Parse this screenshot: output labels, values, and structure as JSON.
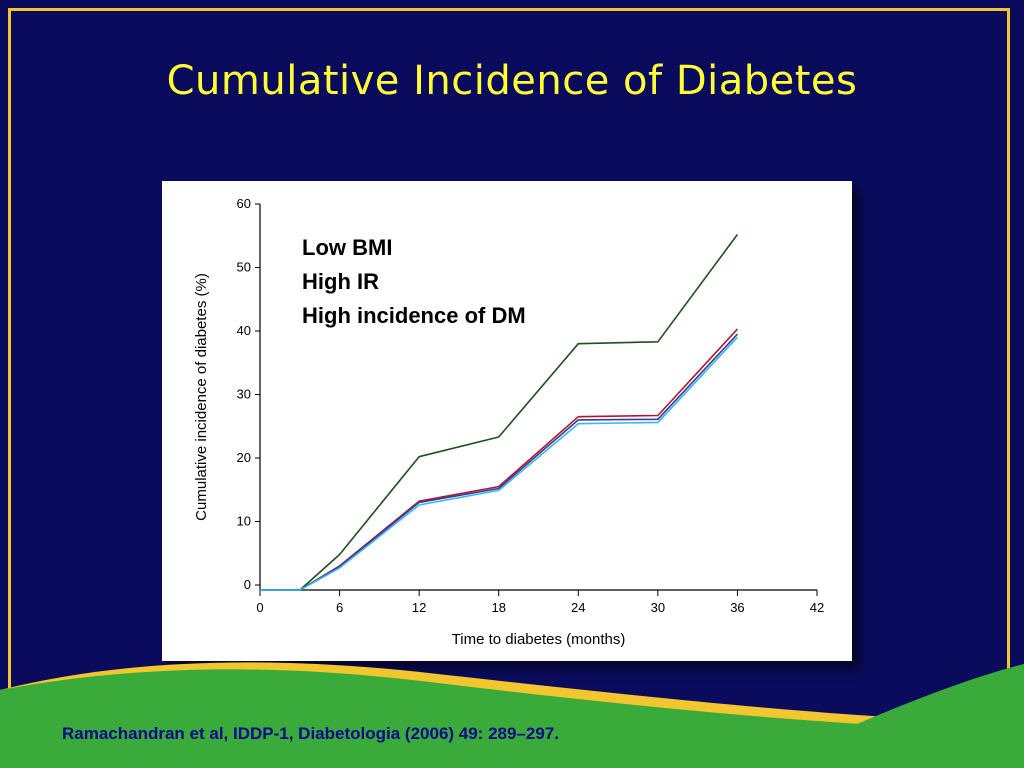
{
  "slide": {
    "title": "Cumulative Incidence of Diabetes",
    "citation": "Ramachandran et al, IDDP-1, Diabetologia (2006) 49: 289–297.",
    "colors": {
      "background": "#0b0b5e",
      "title": "#ffff33",
      "border": "#f2c62e",
      "wave_green": "#3aaa3a",
      "wave_gold": "#f2c62e"
    }
  },
  "annotation": [
    "Low BMI",
    "High IR",
    "High incidence of DM"
  ],
  "chart_data": {
    "type": "line",
    "xlabel": "Time to diabetes (months)",
    "ylabel": "Cumulative incidence of diabetes (%)",
    "xlim": [
      0,
      42
    ],
    "ylim": [
      0,
      60
    ],
    "xticks": [
      0,
      6,
      12,
      18,
      24,
      30,
      36,
      42
    ],
    "yticks": [
      0,
      10,
      20,
      30,
      40,
      50,
      60
    ],
    "grid": false,
    "series": [
      {
        "color": "#1f4f1f",
        "x": [
          0,
          3,
          6,
          12,
          18,
          24,
          30,
          36
        ],
        "y": [
          -0.8,
          -0.8,
          4.8,
          20.2,
          23.3,
          38.0,
          38.3,
          55.2
        ]
      },
      {
        "color": "#b0182a",
        "x": [
          0,
          3,
          6,
          12,
          18,
          24,
          30,
          36
        ],
        "y": [
          -0.8,
          -0.8,
          3.0,
          13.2,
          15.5,
          26.5,
          26.7,
          40.3
        ]
      },
      {
        "color": "#3a3aa0",
        "x": [
          0,
          3,
          6,
          12,
          18,
          24,
          30,
          36
        ],
        "y": [
          -0.8,
          -0.8,
          2.9,
          13.0,
          15.2,
          26.0,
          26.1,
          39.5
        ]
      },
      {
        "color": "#35b8e8",
        "x": [
          0,
          3,
          6,
          12,
          18,
          24,
          30,
          36
        ],
        "y": [
          -0.8,
          -0.8,
          2.7,
          12.6,
          14.9,
          25.4,
          25.6,
          39.0
        ]
      }
    ]
  }
}
